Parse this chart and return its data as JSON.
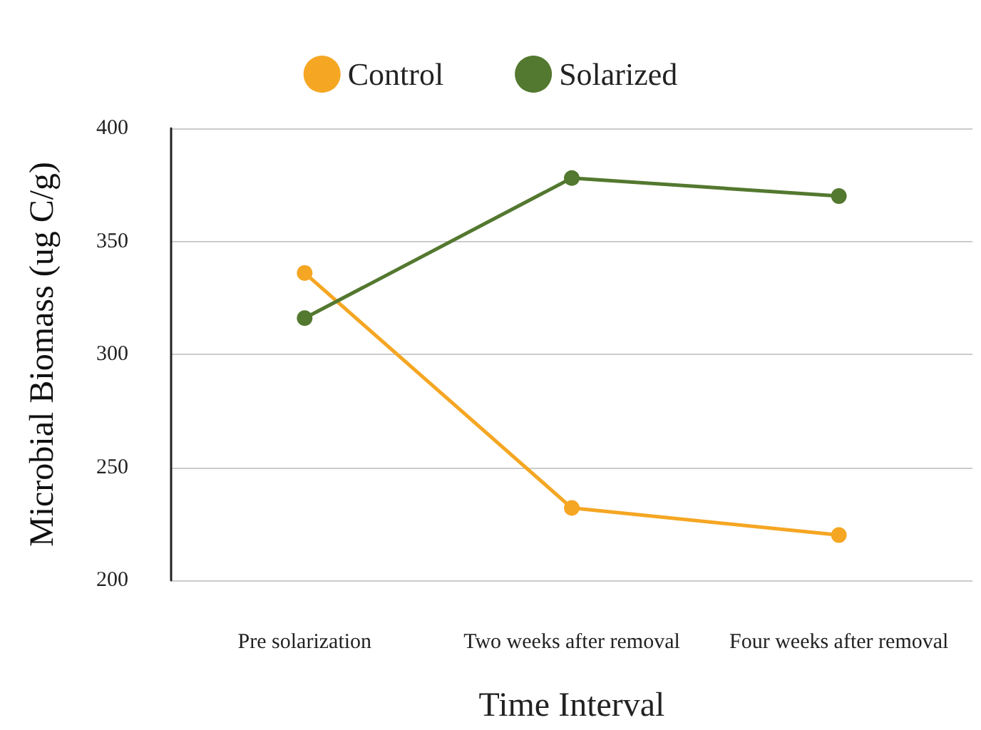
{
  "chart_data": {
    "type": "line",
    "xlabel": "Time Interval",
    "ylabel": "Microbial Biomass (ug C/g)",
    "categories": [
      "Pre solarization",
      "Two weeks after removal",
      "Four weeks after removal"
    ],
    "series": [
      {
        "name": "Control",
        "color": "#f5a623",
        "values": [
          336,
          232,
          220
        ]
      },
      {
        "name": "Solarized",
        "color": "#53782f",
        "values": [
          316,
          378,
          370
        ]
      }
    ],
    "ylim": [
      200,
      400
    ],
    "yticks": [
      200,
      250,
      300,
      350,
      400
    ],
    "grid": "y",
    "legend": "top",
    "marker": "circle",
    "line_style": "solid"
  }
}
